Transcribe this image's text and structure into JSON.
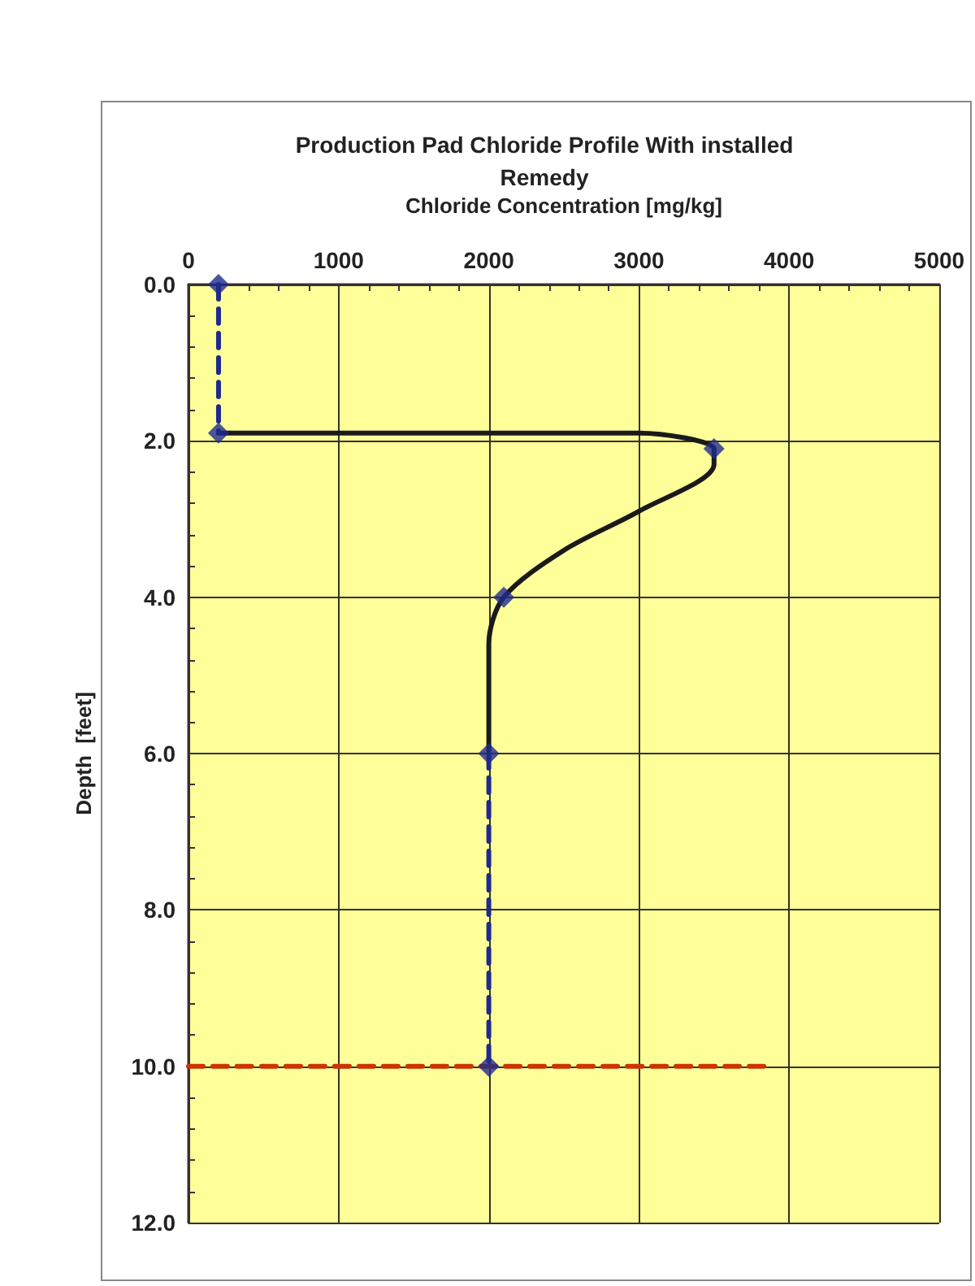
{
  "chart_data": {
    "type": "line",
    "title": "Production Pad Chloride Profile With installed Remedy",
    "xlabel": "Chloride Concentration [mg/kg]",
    "ylabel": "Depth  [feet]",
    "xlim": [
      0,
      5000
    ],
    "xticks": [
      0,
      1000,
      2000,
      3000,
      4000,
      5000
    ],
    "ylim": [
      12,
      0
    ],
    "yticks": [
      {
        "value": 0,
        "label": "0.0"
      },
      {
        "value": 2,
        "label": "2.0"
      },
      {
        "value": 4,
        "label": "4.0"
      },
      {
        "value": 6,
        "label": "6.0"
      },
      {
        "value": 8,
        "label": "8.0"
      },
      {
        "value": 10,
        "label": "10.0"
      },
      {
        "value": 12,
        "label": "12.0"
      }
    ],
    "grid": true,
    "series": [
      {
        "color": "#1a1a1a",
        "line_style": "solid",
        "marker": "none",
        "x": [
          200,
          3000,
          3500,
          3500,
          3000,
          2500,
          2100,
          2000,
          2000
        ],
        "values": [
          1.9,
          1.9,
          2.1,
          2.3,
          2.9,
          3.4,
          4.0,
          4.6,
          6.0
        ]
      },
      {
        "color": "#1f2a8c",
        "line_style": "dashed",
        "marker": "none",
        "x": [
          200,
          200
        ],
        "values": [
          0,
          1.9
        ]
      },
      {
        "color": "#1f2a8c",
        "line_style": "dashed",
        "marker": "none",
        "x": [
          2000,
          2000
        ],
        "values": [
          6,
          10
        ]
      },
      {
        "type": "scatter",
        "color": "#1f2a8c",
        "marker": "diamond",
        "x": [
          200,
          200,
          3500,
          2100,
          2000,
          2000
        ],
        "values": [
          0,
          1.9,
          2.1,
          4.0,
          6.0,
          10.0
        ]
      },
      {
        "color": "#cc3300",
        "line_style": "dashed",
        "marker": "none",
        "x": [
          0,
          3850
        ],
        "values": [
          10,
          10
        ]
      }
    ]
  }
}
